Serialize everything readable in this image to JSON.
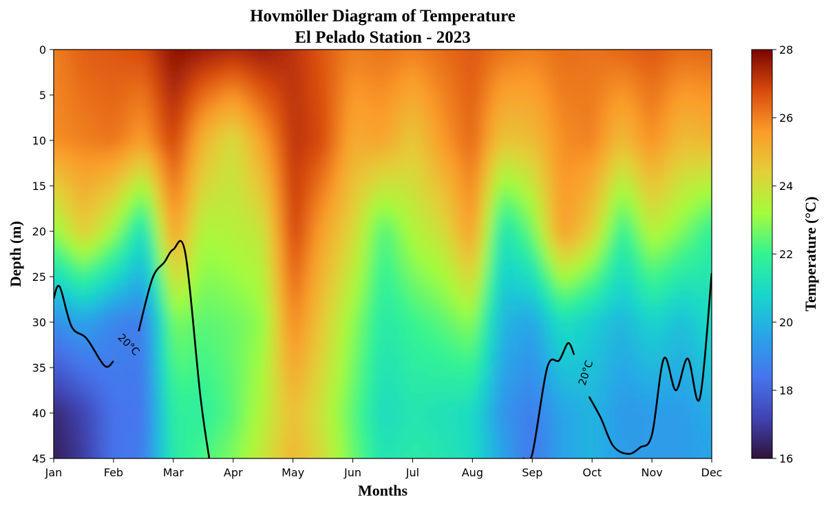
{
  "chart_data": {
    "type": "heatmap",
    "title": "Hovmöller Diagram of Temperature",
    "subtitle": "El Pelado Station - 2023",
    "xlabel": "Months",
    "ylabel": "Depth (m)",
    "colorbar_label": "Temperature (°C)",
    "colormap": "turbo",
    "x_ticks": [
      "Jan",
      "Feb",
      "Mar",
      "Apr",
      "May",
      "Jun",
      "Jul",
      "Aug",
      "Sep",
      "Oct",
      "Nov",
      "Dec"
    ],
    "y_ticks": [
      0,
      5,
      10,
      15,
      20,
      25,
      30,
      35,
      40,
      45
    ],
    "ylim": [
      45,
      0
    ],
    "y_inverted": true,
    "colorbar_ticks": [
      16,
      18,
      20,
      22,
      24,
      26,
      28
    ],
    "clim": [
      16,
      28
    ],
    "month_index": [
      0,
      0.5,
      1,
      1.5,
      2,
      2.5,
      3,
      3.5,
      4,
      4.5,
      5,
      5.5,
      6,
      6.5,
      7,
      7.5,
      8,
      8.5,
      9,
      9.5,
      10,
      10.5,
      11
    ],
    "depths": [
      0,
      10,
      20,
      30,
      40,
      45
    ],
    "temperature": [
      [
        26.0,
        26.5,
        26.6,
        26.8,
        27.8,
        27.6,
        27.4,
        27.6,
        27.2,
        26.6,
        26.0,
        26.2,
        26.0,
        26.3,
        26.6,
        26.2,
        26.0,
        26.3,
        26.2,
        26.4,
        26.6,
        26.3,
        26.4
      ],
      [
        25.8,
        26.0,
        26.2,
        25.5,
        27.0,
        25.0,
        24.0,
        25.5,
        27.2,
        26.8,
        25.2,
        25.4,
        24.5,
        25.6,
        26.4,
        24.6,
        24.8,
        25.8,
        26.0,
        24.8,
        25.8,
        24.8,
        25.0
      ],
      [
        23.0,
        24.5,
        23.2,
        21.0,
        25.6,
        23.3,
        23.5,
        23.8,
        27.0,
        25.4,
        24.2,
        22.2,
        23.4,
        24.0,
        25.6,
        21.2,
        22.6,
        25.6,
        24.4,
        21.8,
        23.6,
        22.8,
        21.8
      ],
      [
        19.0,
        19.6,
        18.8,
        18.6,
        22.8,
        22.4,
        22.6,
        23.0,
        26.0,
        24.5,
        23.0,
        21.5,
        22.0,
        22.4,
        23.0,
        20.0,
        19.6,
        21.2,
        20.6,
        20.0,
        20.8,
        20.2,
        21.0
      ],
      [
        16.5,
        17.2,
        18.4,
        18.4,
        21.8,
        21.8,
        22.4,
        23.5,
        24.8,
        23.8,
        22.4,
        21.0,
        21.4,
        21.2,
        21.0,
        19.2,
        18.6,
        19.6,
        20.0,
        19.3,
        19.4,
        19.4,
        19.8
      ],
      [
        16.3,
        17.0,
        18.4,
        18.6,
        21.6,
        22.2,
        22.8,
        23.8,
        25.0,
        24.0,
        22.6,
        21.3,
        21.6,
        21.4,
        21.0,
        19.6,
        18.4,
        19.6,
        20.0,
        19.4,
        19.4,
        19.4,
        19.6
      ]
    ],
    "contours": [
      {
        "level": 20,
        "label": "20°C",
        "points": [
          [
            0,
            27.4
          ],
          [
            0.1,
            26.1
          ],
          [
            0.3,
            30.5
          ],
          [
            0.55,
            31.8
          ],
          [
            0.85,
            34.8
          ],
          [
            1.0,
            34.3
          ]
        ]
      },
      {
        "level": 20,
        "label": "20°C",
        "points": [
          [
            1.42,
            31.0
          ],
          [
            1.65,
            25.2
          ],
          [
            1.85,
            23.4
          ],
          [
            2.0,
            22.0
          ],
          [
            2.2,
            22.4
          ],
          [
            2.45,
            38.0
          ],
          [
            2.6,
            45.0
          ]
        ]
      },
      {
        "level": 20,
        "label": "20°C",
        "points": [
          [
            7.85,
            45.0
          ],
          [
            8.0,
            44.5
          ],
          [
            8.25,
            35.0
          ],
          [
            8.45,
            34.2
          ],
          [
            8.6,
            32.3
          ],
          [
            8.7,
            33.6
          ]
        ]
      },
      {
        "level": 20,
        "label": "20°C",
        "points": [
          [
            8.95,
            38.2
          ],
          [
            9.15,
            40.6
          ],
          [
            9.35,
            43.6
          ],
          [
            9.6,
            44.5
          ],
          [
            9.8,
            43.8
          ],
          [
            10.0,
            42.4
          ],
          [
            10.2,
            34.0
          ],
          [
            10.4,
            37.5
          ],
          [
            10.6,
            34.0
          ],
          [
            10.8,
            38.4
          ],
          [
            11.0,
            24.6
          ]
        ]
      }
    ],
    "contour_labels": [
      {
        "text": "20°C",
        "x": 1.25,
        "y": 32.5,
        "angle": 45
      },
      {
        "text": "20°C",
        "x": 8.9,
        "y": 35.6,
        "angle": -72
      }
    ]
  }
}
